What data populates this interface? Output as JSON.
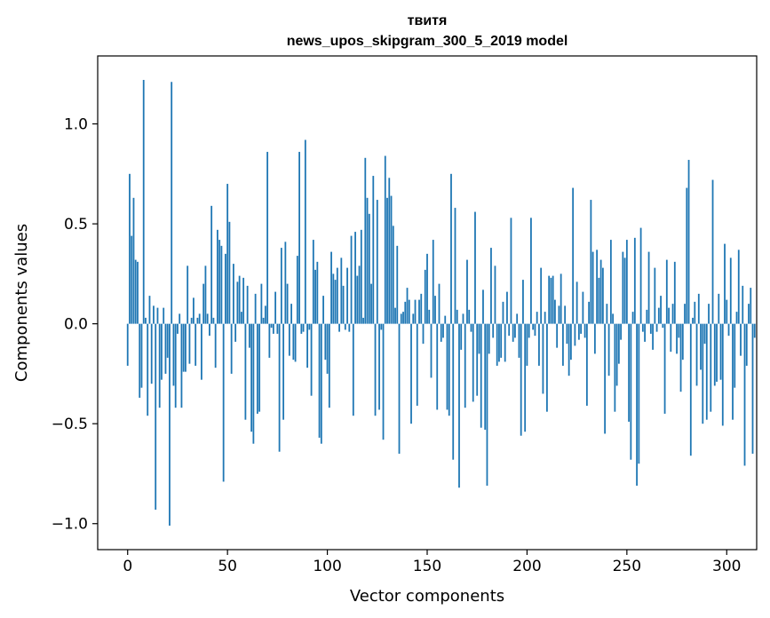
{
  "chart_data": {
    "type": "bar",
    "title": "твитя",
    "subtitle": "news_upos_skipgram_300_5_2019 model",
    "xlabel": "Vector components",
    "ylabel": "Components values",
    "xlim": [
      -15,
      315
    ],
    "ylim": [
      -1.13,
      1.34
    ],
    "xticks": [
      0,
      50,
      100,
      150,
      200,
      250,
      300
    ],
    "yticks": [
      -1.0,
      -0.5,
      0.0,
      0.5,
      1.0
    ],
    "ytick_labels": [
      "−1.0",
      "−0.5",
      "0.0",
      "0.5",
      "1.0"
    ],
    "grid": false,
    "bar_color": "#1f77b4",
    "values": [
      -0.21,
      0.75,
      0.44,
      0.63,
      0.32,
      0.31,
      -0.37,
      -0.32,
      1.22,
      0.03,
      -0.46,
      0.14,
      -0.3,
      0.09,
      -0.93,
      0.08,
      -0.42,
      -0.28,
      0.08,
      -0.25,
      -0.17,
      -1.01,
      1.21,
      -0.31,
      -0.42,
      -0.05,
      0.05,
      -0.42,
      -0.24,
      -0.24,
      0.29,
      -0.2,
      0.03,
      0.13,
      -0.21,
      0.03,
      0.05,
      -0.28,
      0.2,
      0.29,
      0.05,
      -0.06,
      0.59,
      0.03,
      -0.22,
      0.47,
      0.42,
      0.39,
      -0.79,
      0.35,
      0.7,
      0.51,
      -0.25,
      0.3,
      -0.09,
      0.21,
      0.24,
      0.06,
      0.23,
      -0.48,
      0.19,
      -0.12,
      -0.54,
      -0.6,
      0.15,
      -0.45,
      -0.44,
      0.2,
      0.03,
      0.09,
      0.86,
      -0.17,
      -0.02,
      -0.05,
      0.16,
      -0.05,
      -0.64,
      0.38,
      -0.48,
      0.41,
      0.2,
      -0.16,
      0.1,
      -0.18,
      -0.19,
      0.34,
      0.86,
      -0.05,
      -0.04,
      0.92,
      -0.22,
      -0.03,
      -0.36,
      0.42,
      0.27,
      0.31,
      -0.57,
      -0.6,
      0.14,
      -0.18,
      -0.25,
      -0.42,
      0.36,
      0.25,
      0.22,
      0.28,
      -0.04,
      0.33,
      0.19,
      -0.03,
      0.28,
      -0.04,
      0.44,
      -0.46,
      0.46,
      0.24,
      0.29,
      0.47,
      0.03,
      0.83,
      0.63,
      0.55,
      0.2,
      0.74,
      -0.46,
      0.62,
      -0.43,
      -0.03,
      -0.58,
      0.84,
      0.63,
      0.73,
      0.64,
      0.49,
      0.08,
      0.39,
      -0.65,
      0.05,
      0.06,
      0.11,
      0.18,
      0.12,
      -0.5,
      0.05,
      0.12,
      -0.41,
      0.12,
      0.15,
      -0.1,
      0.27,
      0.35,
      0.07,
      -0.27,
      0.42,
      0.14,
      -0.43,
      0.2,
      -0.09,
      -0.07,
      0.04,
      -0.43,
      -0.46,
      0.75,
      -0.68,
      0.58,
      0.07,
      -0.82,
      -0.13,
      0.05,
      -0.42,
      0.32,
      0.07,
      -0.04,
      -0.39,
      0.56,
      -0.36,
      -0.15,
      -0.52,
      0.17,
      -0.53,
      -0.81,
      -0.15,
      0.38,
      -0.07,
      0.29,
      -0.21,
      -0.19,
      -0.17,
      0.11,
      -0.19,
      0.16,
      -0.06,
      0.53,
      -0.09,
      -0.07,
      0.05,
      -0.17,
      -0.56,
      0.22,
      -0.54,
      -0.21,
      -0.07,
      0.53,
      -0.03,
      -0.06,
      0.06,
      -0.21,
      0.28,
      -0.35,
      0.06,
      -0.44,
      0.24,
      0.23,
      0.24,
      0.12,
      -0.12,
      0.09,
      0.25,
      -0.21,
      0.09,
      -0.1,
      -0.26,
      -0.18,
      0.68,
      -0.11,
      0.21,
      -0.08,
      -0.05,
      0.16,
      -0.07,
      -0.41,
      0.11,
      0.62,
      0.36,
      -0.15,
      0.37,
      0.23,
      0.32,
      0.28,
      -0.55,
      0.1,
      -0.26,
      0.42,
      0.05,
      -0.44,
      -0.31,
      -0.2,
      -0.08,
      0.36,
      0.33,
      0.42,
      -0.49,
      -0.68,
      0.06,
      0.43,
      -0.81,
      -0.7,
      0.48,
      -0.04,
      -0.09,
      0.07,
      0.36,
      -0.05,
      -0.13,
      0.28,
      -0.04,
      0.08,
      0.14,
      -0.02,
      -0.45,
      0.32,
      0.08,
      -0.14,
      0.1,
      0.31,
      -0.15,
      -0.07,
      -0.34,
      -0.18,
      0.1,
      0.68,
      0.82,
      -0.66,
      0.03,
      0.11,
      -0.31,
      0.15,
      -0.23,
      -0.5,
      -0.1,
      -0.48,
      0.1,
      -0.44,
      0.72,
      -0.31,
      -0.29,
      0.15,
      -0.28,
      -0.51,
      0.4,
      0.12,
      -0.06,
      0.33,
      -0.48,
      -0.32,
      0.06,
      0.37,
      -0.16,
      0.19,
      -0.71,
      -0.21,
      0.1,
      0.18,
      -0.65,
      -0.07
    ]
  }
}
